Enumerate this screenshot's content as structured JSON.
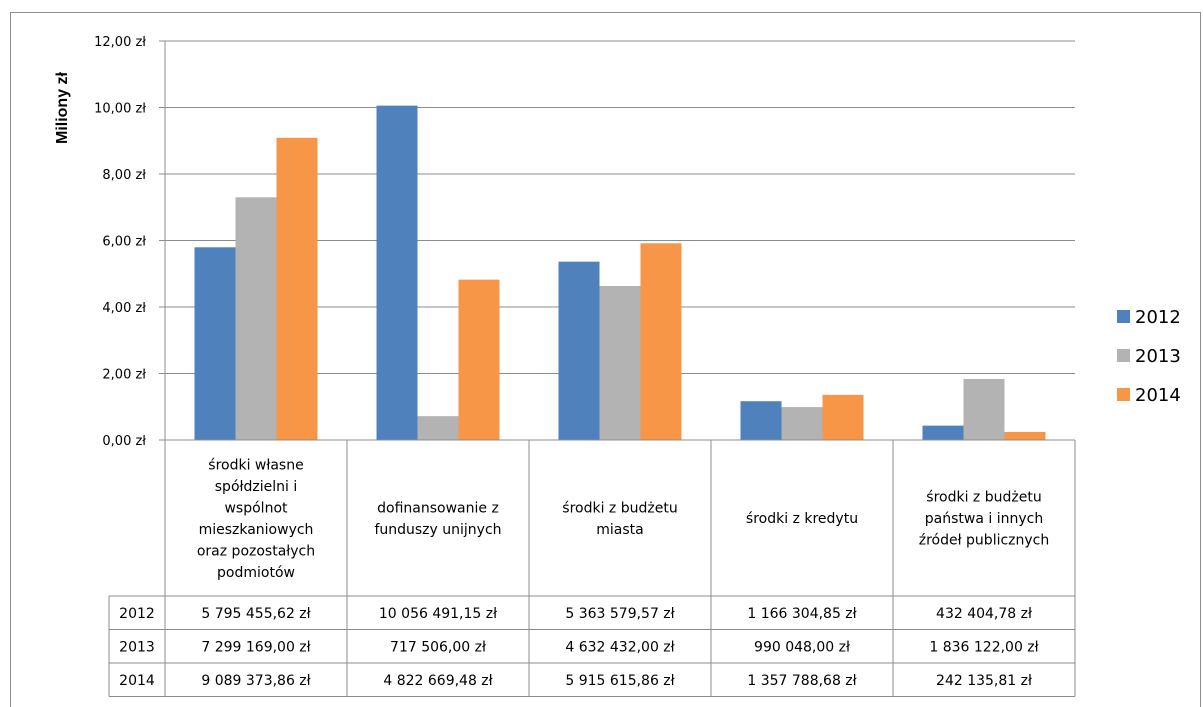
{
  "chart_data": {
    "type": "bar",
    "ylabel": "Miliony zł",
    "ylim": [
      0,
      12
    ],
    "yticks": [
      "0,00 zł",
      "2,00 zł",
      "4,00 zł",
      "6,00 zł",
      "8,00 zł",
      "10,00 zł",
      "12,00 zł"
    ],
    "grid": true,
    "legend_position": "right",
    "categories": [
      [
        "środki własne",
        "spółdzielni i",
        "wspólnot",
        "mieszkaniowych",
        "oraz pozostałych",
        "podmiotów"
      ],
      [
        "dofinansowanie z",
        "funduszy unijnych"
      ],
      [
        "środki z budżetu",
        "miasta"
      ],
      [
        "środki z kredytu"
      ],
      [
        "środki z budżetu",
        "państwa i innych",
        "źródeł publicznych"
      ]
    ],
    "series": [
      {
        "name": "2012",
        "color": "#4f81bd",
        "values": [
          5.79545562,
          10.05649115,
          5.36357957,
          1.16630485,
          0.43240478
        ],
        "labels": [
          "5 795 455,62 zł",
          "10 056 491,15 zł",
          "5 363 579,57 zł",
          "1 166 304,85 zł",
          "432 404,78 zł"
        ]
      },
      {
        "name": "2013",
        "color": "#b3b3b3",
        "values": [
          7.299169,
          0.717506,
          4.632432,
          0.990048,
          1.836122
        ],
        "labels": [
          "7 299 169,00 zł",
          "717 506,00 zł",
          "4 632 432,00 zł",
          "990 048,00 zł",
          "1 836 122,00 zł"
        ]
      },
      {
        "name": "2014",
        "color": "#f79646",
        "values": [
          9.08937386,
          4.82266948,
          5.91561586,
          1.35778868,
          0.24213581
        ],
        "labels": [
          "9 089 373,86 zł",
          "4 822 669,48 zł",
          "5 915 615,86 zł",
          "1 357 788,68 zł",
          "242 135,81 zł"
        ]
      }
    ]
  }
}
